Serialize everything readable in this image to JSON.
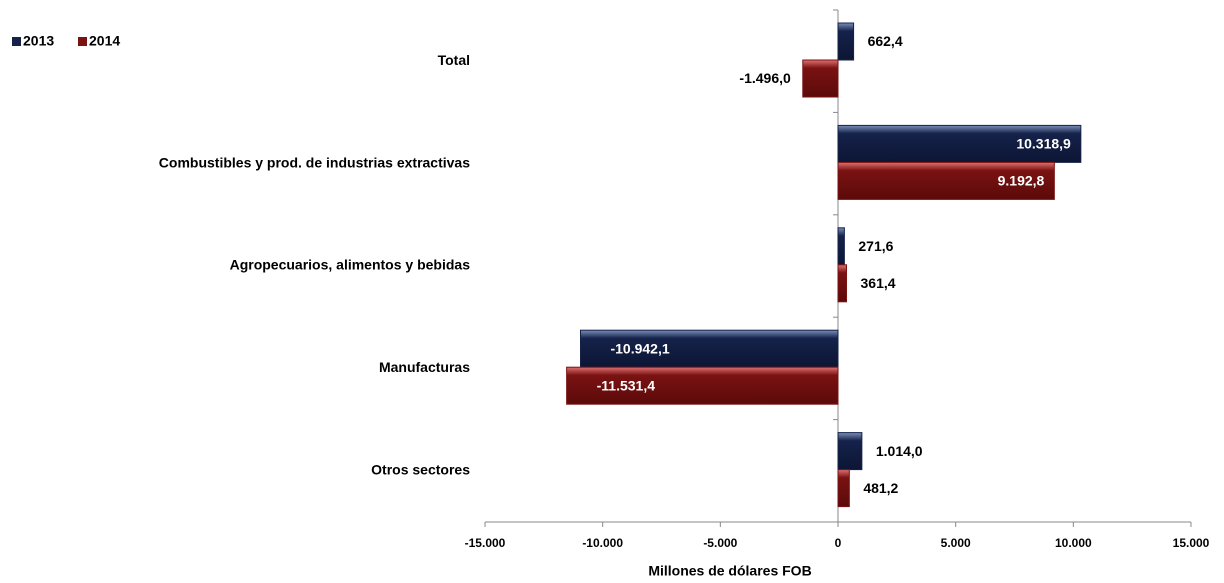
{
  "chart_data": {
    "type": "bar",
    "orientation": "horizontal",
    "x_label": "Millones de dólares FOB",
    "categories": [
      "Total",
      "Combustibles y prod. de industrias extractivas",
      "Agropecuarios, alimentos y bebidas",
      "Manufacturas",
      "Otros sectores"
    ],
    "series": [
      {
        "name": "2013",
        "color": "#15224a",
        "values": [
          662.4,
          10318.9,
          271.6,
          -10942.1,
          1014.0
        ],
        "value_labels": [
          "662,4",
          "10.318,9",
          "271,6",
          "-10.942,1",
          "1.014,0"
        ]
      },
      {
        "name": "2014",
        "color": "#7a1212",
        "values": [
          -1496.0,
          9192.8,
          361.4,
          -11531.4,
          481.2
        ],
        "value_labels": [
          "-1.496,0",
          "9.192,8",
          "361,4",
          "-11.531,4",
          "481,2"
        ]
      }
    ],
    "xlim": [
      -15000,
      15000
    ],
    "xticks": [
      {
        "value": -15000,
        "label": "-15.000"
      },
      {
        "value": -10000,
        "label": "-10.000"
      },
      {
        "value": -5000,
        "label": "-5.000"
      },
      0,
      {
        "value": 5000,
        "label": "5.000"
      },
      {
        "value": 10000,
        "label": "10.000"
      },
      {
        "value": 15000,
        "label": "15.000"
      }
    ],
    "legend": "top-left"
  }
}
